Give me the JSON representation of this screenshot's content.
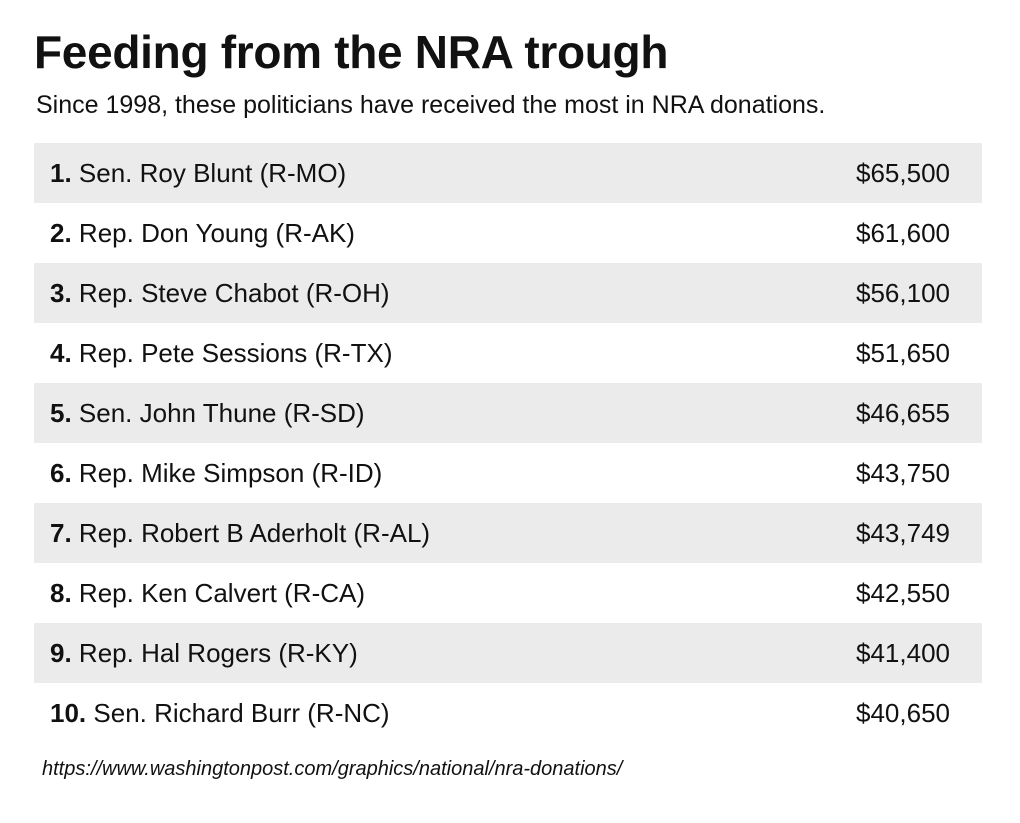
{
  "chart_data": {
    "type": "table",
    "title": "Feeding from the NRA trough",
    "subtitle": "Since 1998, these politicians have received the most in NRA donations.",
    "rows": [
      {
        "rank": "1.",
        "name": "Sen. Roy Blunt (R-MO)",
        "amount": "$65,500",
        "value": 65500
      },
      {
        "rank": "2.",
        "name": "Rep. Don Young (R-AK)",
        "amount": "$61,600",
        "value": 61600
      },
      {
        "rank": "3.",
        "name": "Rep. Steve Chabot (R-OH)",
        "amount": "$56,100",
        "value": 56100
      },
      {
        "rank": "4.",
        "name": "Rep. Pete Sessions (R-TX)",
        "amount": "$51,650",
        "value": 51650
      },
      {
        "rank": "5.",
        "name": "Sen. John Thune (R-SD)",
        "amount": "$46,655",
        "value": 46655
      },
      {
        "rank": "6.",
        "name": "Rep. Mike Simpson (R-ID)",
        "amount": "$43,750",
        "value": 43750
      },
      {
        "rank": "7.",
        "name": "Rep. Robert B Aderholt (R-AL)",
        "amount": "$43,749",
        "value": 43749
      },
      {
        "rank": "8.",
        "name": "Rep. Ken Calvert (R-CA)",
        "amount": "$42,550",
        "value": 42550
      },
      {
        "rank": "9.",
        "name": "Rep. Hal Rogers (R-KY)",
        "amount": "$41,400",
        "value": 41400
      },
      {
        "rank": "10.",
        "name": "Sen. Richard Burr (R-NC)",
        "amount": "$40,650",
        "value": 40650
      }
    ],
    "source": "https://www.washingtonpost.com/graphics/national/nra-donations/",
    "colors": {
      "shaded_row": "#ebebeb",
      "plain_row": "#ffffff",
      "text": "#111111"
    }
  }
}
